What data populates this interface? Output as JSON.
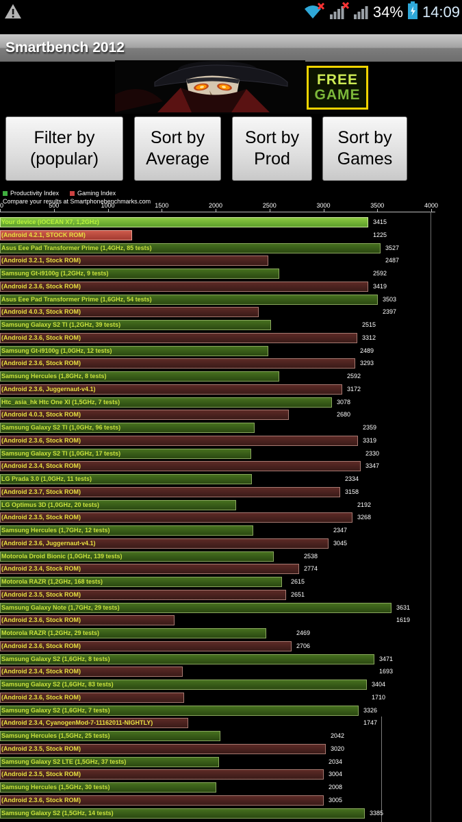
{
  "status_bar": {
    "battery_percent": "34%",
    "time": "14:09",
    "icons": [
      "warning-triangle",
      "wifi-no-internet",
      "signal-bars-no-service",
      "signal-bars",
      "battery-charging"
    ]
  },
  "title_bar": {
    "title": "Smartbench 2012"
  },
  "ad": {
    "badge_line1": "FREE",
    "badge_line2": "GAME"
  },
  "buttons": [
    {
      "line1": "Filter by",
      "line2": "(popular)"
    },
    {
      "line1": "Sort by",
      "line2": "Average"
    },
    {
      "line1": "Sort by",
      "line2": "Prod"
    },
    {
      "line1": "Sort by",
      "line2": "Games"
    }
  ],
  "legend": {
    "compare_text": "Compare your results at Smartphonebenchmarks.com"
  },
  "colors": {
    "productivity_bar": "#46701f",
    "gaming_bar": "#5c2a26",
    "highlight_productivity_bar": "#76b83e",
    "highlight_gaming_bar": "#c04c40",
    "device_label": "#c8e23c",
    "rom_label": "#e8e040",
    "value_label": "#ffffff",
    "status_accent_blue": "#2fa8d8",
    "free_badge_border": "#f0d400"
  },
  "chart_data": {
    "type": "bar",
    "orientation": "horizontal",
    "title": "",
    "xlabel": "",
    "ylabel": "",
    "xlim": [
      0,
      4000
    ],
    "x_ticks": [
      0,
      500,
      1000,
      1500,
      2000,
      2500,
      3000,
      3500,
      4000
    ],
    "grid": false,
    "series_names": [
      "Productivity Index",
      "Gaming Index"
    ],
    "devices": [
      {
        "name": "Your device (iOCEAN X7, 1,2GHz)",
        "rom": "(Android 4.2.1, STOCK ROM)",
        "productivity": 3415,
        "gaming": 1225,
        "highlight": true
      },
      {
        "name": "Asus Eee Pad Transformer Prime (1,4GHz, 85 tests)",
        "rom": "(Android 3.2.1, Stock ROM)",
        "productivity": 3527,
        "gaming": 2487
      },
      {
        "name": "Samsung Gt-i9100g (1,2GHz, 9 tests)",
        "rom": "(Android 2.3.6, Stock ROM)",
        "productivity": 2592,
        "gaming": 3419
      },
      {
        "name": "Asus Eee Pad Transformer Prime (1,6GHz, 54 tests)",
        "rom": "(Android 4.0.3, Stock ROM)",
        "productivity": 3503,
        "gaming": 2397
      },
      {
        "name": "Samsung Galaxy S2 TI (1,2GHz, 39 tests)",
        "rom": "(Android 2.3.6, Stock ROM)",
        "productivity": 2515,
        "gaming": 3312
      },
      {
        "name": "Samsung Gt-i9100g (1,0GHz, 12 tests)",
        "rom": "(Android 2.3.6, Stock ROM)",
        "productivity": 2489,
        "gaming": 3293
      },
      {
        "name": "Samsung Hercules (1,8GHz, 8 tests)",
        "rom": "(Android 2.3.6, Juggernaut-v4.1)",
        "productivity": 2592,
        "gaming": 3172
      },
      {
        "name": "Htc_asia_hk Htc One Xl (1,5GHz, 7 tests)",
        "rom": "(Android 4.0.3, Stock ROM)",
        "productivity": 3078,
        "gaming": 2680
      },
      {
        "name": "Samsung Galaxy S2 TI (1,0GHz, 96 tests)",
        "rom": "(Android 2.3.6, Stock ROM)",
        "productivity": 2359,
        "gaming": 3319
      },
      {
        "name": "Samsung Galaxy S2 TI (1,0GHz, 17 tests)",
        "rom": "(Android 2.3.4, Stock ROM)",
        "productivity": 2330,
        "gaming": 3347
      },
      {
        "name": "LG Prada 3.0 (1,0GHz, 11 tests)",
        "rom": "(Android 2.3.7, Stock ROM)",
        "productivity": 2334,
        "gaming": 3158
      },
      {
        "name": "LG Optimus 3D (1,0GHz, 20 tests)",
        "rom": "(Android 2.3.5, Stock ROM)",
        "productivity": 2192,
        "gaming": 3268
      },
      {
        "name": "Samsung Hercules (1,7GHz, 12 tests)",
        "rom": "(Android 2.3.6, Juggernaut-v4.1)",
        "productivity": 2347,
        "gaming": 3045
      },
      {
        "name": "Motorola Droid Bionic (1,0GHz, 139 tests)",
        "rom": "(Android 2.3.4, Stock ROM)",
        "productivity": 2538,
        "gaming": 2774
      },
      {
        "name": "Motorola RAZR (1,2GHz, 168 tests)",
        "rom": "(Android 2.3.5, Stock ROM)",
        "productivity": 2615,
        "gaming": 2651
      },
      {
        "name": "Samsung Galaxy Note (1,7GHz, 29 tests)",
        "rom": "(Android 2.3.6, Stock ROM)",
        "productivity": 3631,
        "gaming": 1619
      },
      {
        "name": "Motorola RAZR (1,2GHz, 29 tests)",
        "rom": "(Android 2.3.6, Stock ROM)",
        "productivity": 2469,
        "gaming": 2706
      },
      {
        "name": "Samsung Galaxy S2 (1,6GHz, 8 tests)",
        "rom": "(Android 2.3.4, Stock ROM)",
        "productivity": 3471,
        "gaming": 1693
      },
      {
        "name": "Samsung Galaxy S2 (1,6GHz, 83 tests)",
        "rom": "(Android 2.3.6, Stock ROM)",
        "productivity": 3404,
        "gaming": 1710
      },
      {
        "name": "Samsung Galaxy S2 (1,6GHz, 7 tests)",
        "rom": "(Android 2.3.4, CyanogenMod-7-11162011-NIGHTLY)",
        "productivity": 3326,
        "gaming": 1747
      },
      {
        "name": "Samsung Hercules (1,5GHz, 25 tests)",
        "rom": "(Android 2.3.5, Stock ROM)",
        "productivity": 2042,
        "gaming": 3020
      },
      {
        "name": "Samsung Galaxy S2 LTE (1,5GHz, 37 tests)",
        "rom": "(Android 2.3.5, Stock ROM)",
        "productivity": 2034,
        "gaming": 3004
      },
      {
        "name": "Samsung Hercules (1,5GHz, 30 tests)",
        "rom": "(Android 2.3.6, Stock ROM)",
        "productivity": 2008,
        "gaming": 3005
      },
      {
        "name": "Samsung Galaxy S2 (1,5GHz, 14 tests)",
        "productivity": 3385
      }
    ]
  }
}
